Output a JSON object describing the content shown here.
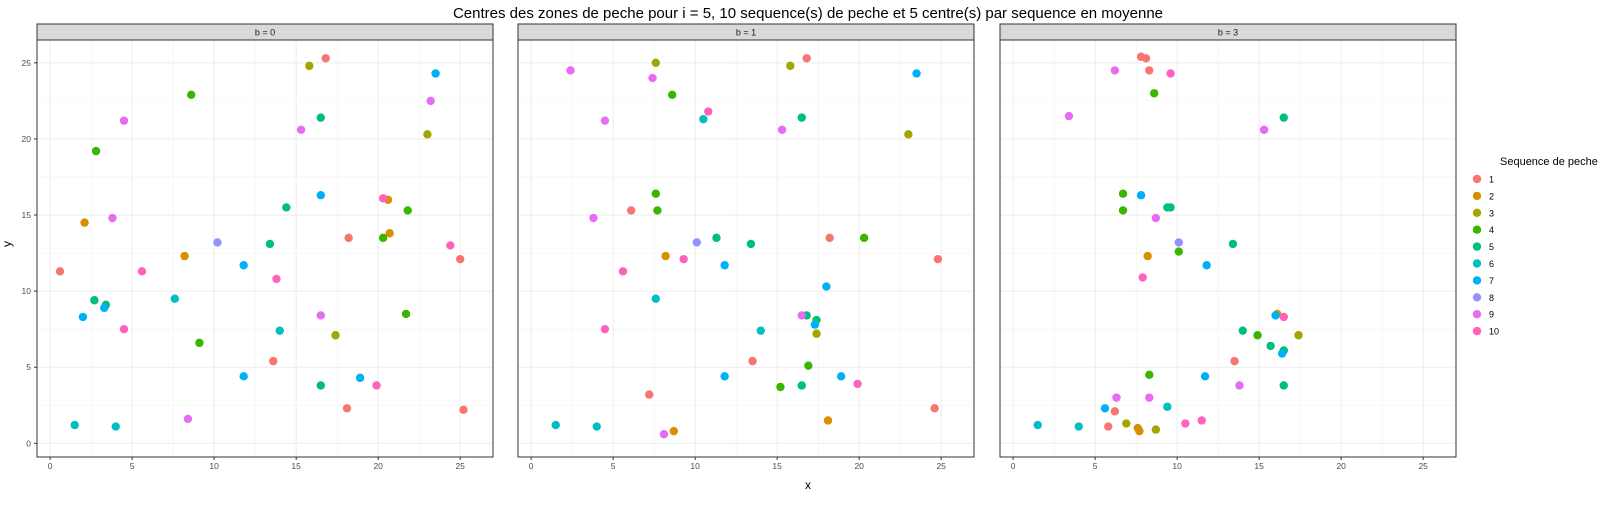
{
  "chart_data": {
    "type": "scatter",
    "title": "Centres des zones de peche pour i = 5, 10 sequence(s) de peche et 5 centre(s) par sequence en moyenne",
    "xlabel": "x",
    "ylabel": "y",
    "xlim": [
      -0.8,
      27.0
    ],
    "ylim": [
      -0.9,
      26.5
    ],
    "x_ticks": [
      0,
      5,
      10,
      15,
      20,
      25
    ],
    "y_ticks": [
      0,
      5,
      10,
      15,
      20,
      25
    ],
    "grid": true,
    "legend": {
      "title": "Sequence de peche",
      "placement": "right",
      "entries": [
        {
          "label": "1",
          "color": "#F8766D"
        },
        {
          "label": "2",
          "color": "#D89000"
        },
        {
          "label": "3",
          "color": "#A3A500"
        },
        {
          "label": "4",
          "color": "#39B600"
        },
        {
          "label": "5",
          "color": "#00BF7D"
        },
        {
          "label": "6",
          "color": "#00BFC4"
        },
        {
          "label": "7",
          "color": "#00B0F6"
        },
        {
          "label": "8",
          "color": "#9590FF"
        },
        {
          "label": "9",
          "color": "#E76BF3"
        },
        {
          "label": "10",
          "color": "#FF62BC"
        }
      ]
    },
    "panels": [
      {
        "label": "b = 0",
        "points": [
          {
            "x": 16.8,
            "y": 25.3,
            "s": 1
          },
          {
            "x": 0.6,
            "y": 11.3,
            "s": 1
          },
          {
            "x": 18.2,
            "y": 13.5,
            "s": 1
          },
          {
            "x": 25.0,
            "y": 12.1,
            "s": 1
          },
          {
            "x": 13.6,
            "y": 5.4,
            "s": 1
          },
          {
            "x": 18.1,
            "y": 2.3,
            "s": 1
          },
          {
            "x": 25.2,
            "y": 2.2,
            "s": 1
          },
          {
            "x": 2.1,
            "y": 14.5,
            "s": 2
          },
          {
            "x": 20.6,
            "y": 16.0,
            "s": 2
          },
          {
            "x": 20.7,
            "y": 13.8,
            "s": 2
          },
          {
            "x": 8.2,
            "y": 12.3,
            "s": 2
          },
          {
            "x": 15.8,
            "y": 24.8,
            "s": 3
          },
          {
            "x": 23.0,
            "y": 20.3,
            "s": 3
          },
          {
            "x": 17.4,
            "y": 7.1,
            "s": 3
          },
          {
            "x": 8.6,
            "y": 22.9,
            "s": 4
          },
          {
            "x": 2.8,
            "y": 19.2,
            "s": 4
          },
          {
            "x": 20.3,
            "y": 13.5,
            "s": 4
          },
          {
            "x": 21.8,
            "y": 15.3,
            "s": 4
          },
          {
            "x": 21.7,
            "y": 8.5,
            "s": 4
          },
          {
            "x": 9.1,
            "y": 6.6,
            "s": 4
          },
          {
            "x": 16.5,
            "y": 21.4,
            "s": 5
          },
          {
            "x": 14.4,
            "y": 15.5,
            "s": 5
          },
          {
            "x": 13.4,
            "y": 13.1,
            "s": 5
          },
          {
            "x": 2.7,
            "y": 9.4,
            "s": 5
          },
          {
            "x": 3.4,
            "y": 9.1,
            "s": 5
          },
          {
            "x": 16.5,
            "y": 3.8,
            "s": 5
          },
          {
            "x": 7.6,
            "y": 9.5,
            "s": 6
          },
          {
            "x": 14.0,
            "y": 7.4,
            "s": 6
          },
          {
            "x": 1.5,
            "y": 1.2,
            "s": 6
          },
          {
            "x": 4.0,
            "y": 1.1,
            "s": 6
          },
          {
            "x": 23.5,
            "y": 24.3,
            "s": 7
          },
          {
            "x": 16.5,
            "y": 16.3,
            "s": 7
          },
          {
            "x": 11.8,
            "y": 11.7,
            "s": 7
          },
          {
            "x": 2.0,
            "y": 8.3,
            "s": 7
          },
          {
            "x": 3.3,
            "y": 8.9,
            "s": 7
          },
          {
            "x": 11.8,
            "y": 4.4,
            "s": 7
          },
          {
            "x": 18.9,
            "y": 4.3,
            "s": 7
          },
          {
            "x": 10.2,
            "y": 13.2,
            "s": 8
          },
          {
            "x": 23.2,
            "y": 22.5,
            "s": 9
          },
          {
            "x": 4.5,
            "y": 21.2,
            "s": 9
          },
          {
            "x": 15.3,
            "y": 20.6,
            "s": 9
          },
          {
            "x": 3.8,
            "y": 14.8,
            "s": 9
          },
          {
            "x": 16.5,
            "y": 8.4,
            "s": 9
          },
          {
            "x": 8.4,
            "y": 1.6,
            "s": 9
          },
          {
            "x": 20.3,
            "y": 16.1,
            "s": 10
          },
          {
            "x": 24.4,
            "y": 13.0,
            "s": 10
          },
          {
            "x": 5.6,
            "y": 11.3,
            "s": 10
          },
          {
            "x": 13.8,
            "y": 10.8,
            "s": 10
          },
          {
            "x": 4.5,
            "y": 7.5,
            "s": 10
          },
          {
            "x": 19.9,
            "y": 3.8,
            "s": 10
          }
        ]
      },
      {
        "label": "b = 1",
        "points": [
          {
            "x": 16.8,
            "y": 25.3,
            "s": 1
          },
          {
            "x": 6.1,
            "y": 15.3,
            "s": 1
          },
          {
            "x": 18.2,
            "y": 13.5,
            "s": 1
          },
          {
            "x": 24.8,
            "y": 12.1,
            "s": 1
          },
          {
            "x": 13.5,
            "y": 5.4,
            "s": 1
          },
          {
            "x": 7.2,
            "y": 3.2,
            "s": 1
          },
          {
            "x": 24.6,
            "y": 2.3,
            "s": 1
          },
          {
            "x": 8.2,
            "y": 12.3,
            "s": 2
          },
          {
            "x": 8.7,
            "y": 0.8,
            "s": 2
          },
          {
            "x": 18.1,
            "y": 1.5,
            "s": 2
          },
          {
            "x": 7.6,
            "y": 25.0,
            "s": 3
          },
          {
            "x": 15.8,
            "y": 24.8,
            "s": 3
          },
          {
            "x": 23.0,
            "y": 20.3,
            "s": 3
          },
          {
            "x": 17.4,
            "y": 7.2,
            "s": 3
          },
          {
            "x": 8.6,
            "y": 22.9,
            "s": 4
          },
          {
            "x": 7.6,
            "y": 16.4,
            "s": 4
          },
          {
            "x": 7.7,
            "y": 15.3,
            "s": 4
          },
          {
            "x": 20.3,
            "y": 13.5,
            "s": 4
          },
          {
            "x": 16.9,
            "y": 5.1,
            "s": 4
          },
          {
            "x": 15.2,
            "y": 3.7,
            "s": 4
          },
          {
            "x": 16.5,
            "y": 21.4,
            "s": 5
          },
          {
            "x": 11.3,
            "y": 13.5,
            "s": 5
          },
          {
            "x": 13.4,
            "y": 13.1,
            "s": 5
          },
          {
            "x": 17.4,
            "y": 8.1,
            "s": 5
          },
          {
            "x": 16.8,
            "y": 8.4,
            "s": 5
          },
          {
            "x": 16.5,
            "y": 3.8,
            "s": 5
          },
          {
            "x": 10.5,
            "y": 21.3,
            "s": 6
          },
          {
            "x": 7.6,
            "y": 9.5,
            "s": 6
          },
          {
            "x": 14.0,
            "y": 7.4,
            "s": 6
          },
          {
            "x": 1.5,
            "y": 1.2,
            "s": 6
          },
          {
            "x": 4.0,
            "y": 1.1,
            "s": 6
          },
          {
            "x": 23.5,
            "y": 24.3,
            "s": 7
          },
          {
            "x": 11.8,
            "y": 11.7,
            "s": 7
          },
          {
            "x": 18.0,
            "y": 10.3,
            "s": 7
          },
          {
            "x": 17.3,
            "y": 7.8,
            "s": 7
          },
          {
            "x": 11.8,
            "y": 4.4,
            "s": 7
          },
          {
            "x": 18.9,
            "y": 4.4,
            "s": 7
          },
          {
            "x": 10.1,
            "y": 13.2,
            "s": 8
          },
          {
            "x": 2.4,
            "y": 24.5,
            "s": 9
          },
          {
            "x": 7.4,
            "y": 24.0,
            "s": 9
          },
          {
            "x": 4.5,
            "y": 21.2,
            "s": 9
          },
          {
            "x": 15.3,
            "y": 20.6,
            "s": 9
          },
          {
            "x": 3.8,
            "y": 14.8,
            "s": 9
          },
          {
            "x": 16.5,
            "y": 8.4,
            "s": 9
          },
          {
            "x": 8.1,
            "y": 0.6,
            "s": 9
          },
          {
            "x": 10.8,
            "y": 21.8,
            "s": 10
          },
          {
            "x": 5.6,
            "y": 11.3,
            "s": 10
          },
          {
            "x": 9.3,
            "y": 12.1,
            "s": 10
          },
          {
            "x": 4.5,
            "y": 7.5,
            "s": 10
          },
          {
            "x": 19.9,
            "y": 3.9,
            "s": 10
          }
        ]
      },
      {
        "label": "b = 3",
        "points": [
          {
            "x": 7.8,
            "y": 25.4,
            "s": 1
          },
          {
            "x": 8.1,
            "y": 25.3,
            "s": 1
          },
          {
            "x": 8.3,
            "y": 24.5,
            "s": 1
          },
          {
            "x": 13.5,
            "y": 5.4,
            "s": 1
          },
          {
            "x": 6.2,
            "y": 2.1,
            "s": 1
          },
          {
            "x": 5.8,
            "y": 1.1,
            "s": 1
          },
          {
            "x": 8.2,
            "y": 12.3,
            "s": 2
          },
          {
            "x": 16.1,
            "y": 8.5,
            "s": 2
          },
          {
            "x": 7.6,
            "y": 1.0,
            "s": 2
          },
          {
            "x": 7.7,
            "y": 0.8,
            "s": 2
          },
          {
            "x": 17.4,
            "y": 7.1,
            "s": 3
          },
          {
            "x": 6.9,
            "y": 1.3,
            "s": 3
          },
          {
            "x": 8.7,
            "y": 0.9,
            "s": 3
          },
          {
            "x": 8.6,
            "y": 23.0,
            "s": 4
          },
          {
            "x": 6.7,
            "y": 16.4,
            "s": 4
          },
          {
            "x": 6.7,
            "y": 15.3,
            "s": 4
          },
          {
            "x": 10.1,
            "y": 12.6,
            "s": 4
          },
          {
            "x": 8.3,
            "y": 4.5,
            "s": 4
          },
          {
            "x": 14.9,
            "y": 7.1,
            "s": 4
          },
          {
            "x": 16.5,
            "y": 21.4,
            "s": 5
          },
          {
            "x": 9.4,
            "y": 15.5,
            "s": 5
          },
          {
            "x": 9.6,
            "y": 15.5,
            "s": 5
          },
          {
            "x": 13.4,
            "y": 13.1,
            "s": 5
          },
          {
            "x": 14.0,
            "y": 7.4,
            "s": 5
          },
          {
            "x": 15.7,
            "y": 6.4,
            "s": 5
          },
          {
            "x": 16.5,
            "y": 6.1,
            "s": 5
          },
          {
            "x": 16.5,
            "y": 3.8,
            "s": 5
          },
          {
            "x": 9.4,
            "y": 2.4,
            "s": 6
          },
          {
            "x": 1.5,
            "y": 1.2,
            "s": 6
          },
          {
            "x": 4.0,
            "y": 1.1,
            "s": 6
          },
          {
            "x": 7.8,
            "y": 16.3,
            "s": 7
          },
          {
            "x": 11.8,
            "y": 11.7,
            "s": 7
          },
          {
            "x": 16.0,
            "y": 8.4,
            "s": 7
          },
          {
            "x": 16.4,
            "y": 5.9,
            "s": 7
          },
          {
            "x": 11.7,
            "y": 4.4,
            "s": 7
          },
          {
            "x": 5.6,
            "y": 2.3,
            "s": 7
          },
          {
            "x": 10.1,
            "y": 13.2,
            "s": 8
          },
          {
            "x": 6.2,
            "y": 24.5,
            "s": 9
          },
          {
            "x": 3.4,
            "y": 21.5,
            "s": 9
          },
          {
            "x": 15.3,
            "y": 20.6,
            "s": 9
          },
          {
            "x": 8.7,
            "y": 14.8,
            "s": 9
          },
          {
            "x": 13.8,
            "y": 3.8,
            "s": 9
          },
          {
            "x": 6.3,
            "y": 3.0,
            "s": 9
          },
          {
            "x": 8.3,
            "y": 3.0,
            "s": 9
          },
          {
            "x": 9.6,
            "y": 24.3,
            "s": 10
          },
          {
            "x": 7.9,
            "y": 10.9,
            "s": 10
          },
          {
            "x": 16.5,
            "y": 8.3,
            "s": 10
          },
          {
            "x": 10.5,
            "y": 1.3,
            "s": 10
          },
          {
            "x": 11.5,
            "y": 1.5,
            "s": 10
          }
        ]
      }
    ]
  }
}
